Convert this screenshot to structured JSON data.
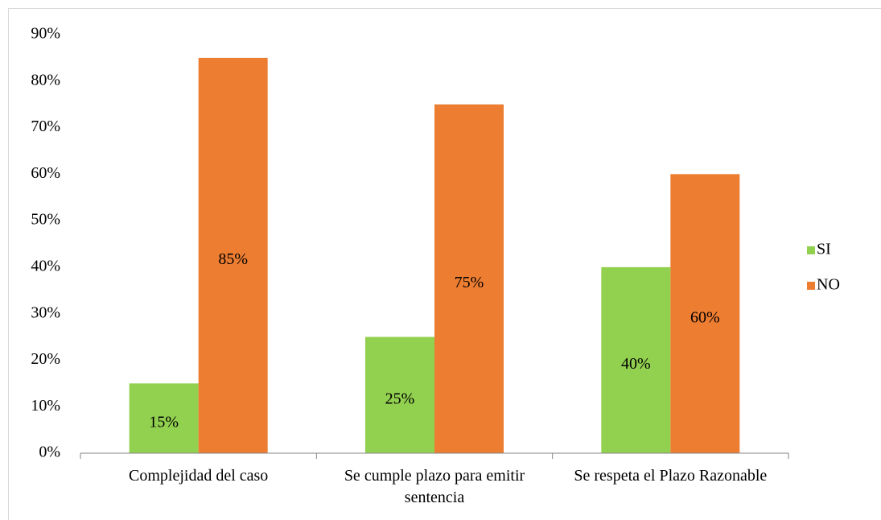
{
  "chart_data": {
    "type": "bar",
    "categories": [
      "Complejidad del caso",
      "Se cumple plazo para emitir sentencia",
      "Se respeta el Plazo Razonable"
    ],
    "series": [
      {
        "name": "SI",
        "color": "#92d050",
        "values": [
          15,
          25,
          40
        ],
        "value_labels": [
          "15%",
          "25%",
          "40%"
        ]
      },
      {
        "name": "NO",
        "color": "#ed7d31",
        "values": [
          85,
          75,
          60
        ],
        "value_labels": [
          "85%",
          "75%",
          "60%"
        ]
      }
    ],
    "ylim": [
      0,
      90
    ],
    "yticks": [
      {
        "value": 0,
        "label": "0%"
      },
      {
        "value": 10,
        "label": "10%"
      },
      {
        "value": 20,
        "label": "20%"
      },
      {
        "value": 30,
        "label": "30%"
      },
      {
        "value": 40,
        "label": "40%"
      },
      {
        "value": 50,
        "label": "50%"
      },
      {
        "value": 60,
        "label": "60%"
      },
      {
        "value": 70,
        "label": "70%"
      },
      {
        "value": 80,
        "label": "80%"
      },
      {
        "value": 90,
        "label": "90%"
      }
    ],
    "grid": false,
    "legend": "right"
  }
}
